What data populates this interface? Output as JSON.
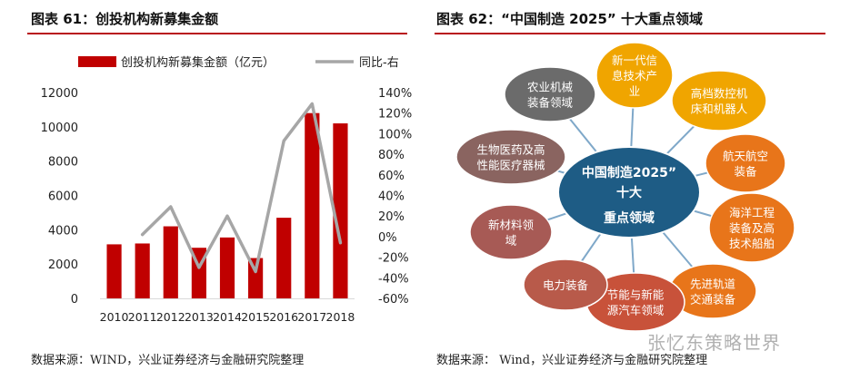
{
  "left": {
    "title": "图表 61：创投机构新募集金额",
    "source": "数据来源：WIND，兴业证券经济与金融研究院整理"
  },
  "right": {
    "title": "图表 62：“中国制造 2025” 十大重点领域",
    "source": "数据来源：  Wind，兴业证券经济与金融研究院整理",
    "center": [
      "中国制造2025”",
      "十大",
      "重点领域"
    ],
    "nodes": [
      {
        "lines": [
          "新一代信",
          "息技术产",
          "业"
        ],
        "color": "#f0a500"
      },
      {
        "lines": [
          "高档数控机",
          "床和机器人"
        ],
        "color": "#f0a500"
      },
      {
        "lines": [
          "航天航空",
          "装备"
        ],
        "color": "#e8751a"
      },
      {
        "lines": [
          "海洋工程",
          "装备及高",
          "技术船舶"
        ],
        "color": "#e8751a"
      },
      {
        "lines": [
          "先进轨道",
          "交通装备"
        ],
        "color": "#e8751a"
      },
      {
        "lines": [
          "节能与新能",
          "源汽车领域"
        ],
        "color": "#c8523a"
      },
      {
        "lines": [
          "电力装备"
        ],
        "color": "#b85a4a"
      },
      {
        "lines": [
          "新材料领",
          "域"
        ],
        "color": "#a75a55"
      },
      {
        "lines": [
          "生物医药及高",
          "性能医疗器械"
        ],
        "color": "#8a6460"
      },
      {
        "lines": [
          "农业机械",
          "装备领域"
        ],
        "color": "#6b6b6b"
      }
    ],
    "colors": {
      "center": "#1e5c85",
      "spoke": "#7fa8c9"
    }
  },
  "watermark": "张忆东策略世界",
  "chart_data": {
    "type": "bar",
    "title": "创投机构新募集金额",
    "categories": [
      "2010",
      "2011",
      "2012",
      "2013",
      "2014",
      "2015",
      "2016",
      "2017",
      "2018"
    ],
    "series": [
      {
        "name": "创投机构新募集金额（亿元）",
        "type": "bar",
        "axis": "left",
        "values": [
          3150,
          3200,
          4200,
          2950,
          3550,
          2350,
          4700,
          10800,
          10200
        ],
        "color": "#c00000"
      },
      {
        "name": "同比-右",
        "type": "line",
        "axis": "right",
        "values": [
          null,
          2,
          29,
          -30,
          20,
          -34,
          93,
          129,
          -6
        ],
        "color": "#a6a6a6"
      }
    ],
    "ylim": [
      0,
      12000
    ],
    "yticks": [
      0,
      2000,
      4000,
      6000,
      8000,
      10000,
      12000
    ],
    "y2lim": [
      -60,
      140
    ],
    "y2ticks": [
      "-60%",
      "-40%",
      "-20%",
      "0%",
      "20%",
      "40%",
      "60%",
      "80%",
      "100%",
      "120%",
      "140%"
    ],
    "legend_position": "top"
  }
}
